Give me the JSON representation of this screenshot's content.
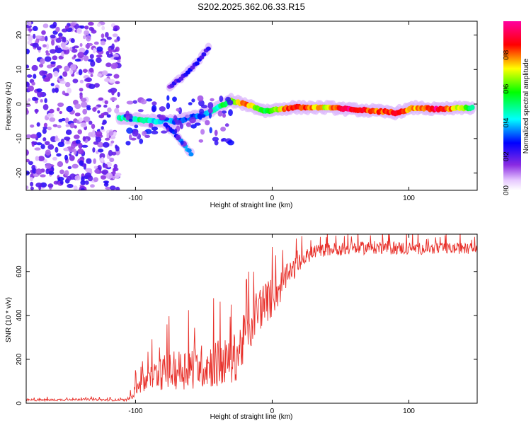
{
  "title": "S202.2025.362.06.33.R15",
  "chart_data": [
    {
      "type": "heatmap",
      "title": "S202.2025.362.06.33.R15",
      "xlabel": "Height of straight line (km)",
      "ylabel": "Frequency (Hz)",
      "xlim": [
        -180,
        150
      ],
      "ylim": [
        -25,
        24
      ],
      "xticks": [
        -100,
        0,
        100
      ],
      "yticks": [
        -20,
        -10,
        0,
        10,
        20
      ],
      "colorbar": {
        "label": "Normalized spectral amplitude",
        "range": [
          0.0,
          1.0
        ],
        "ticks": [
          0.0,
          0.2,
          0.4,
          0.6,
          0.8
        ],
        "tick_labels": [
          "0.0",
          "0.2",
          "0.4",
          "0.6",
          "0.8"
        ]
      },
      "features": [
        {
          "description": "scattered noise",
          "x_range": [
            -180,
            -112
          ],
          "y_range": [
            -25,
            24
          ],
          "amplitude": 0.2
        },
        {
          "description": "main spectral line",
          "points": [
            {
              "x": -112,
              "y": -4,
              "a": 0.45
            },
            {
              "x": -100,
              "y": -4.5,
              "a": 0.5
            },
            {
              "x": -85,
              "y": -5,
              "a": 0.4
            },
            {
              "x": -70,
              "y": -5,
              "a": 0.35
            },
            {
              "x": -50,
              "y": -3,
              "a": 0.35
            },
            {
              "x": -30,
              "y": 1,
              "a": 0.6
            },
            {
              "x": -20,
              "y": 0,
              "a": 0.8
            },
            {
              "x": -5,
              "y": -2,
              "a": 0.5
            },
            {
              "x": 15,
              "y": -1,
              "a": 0.9
            },
            {
              "x": 40,
              "y": -1,
              "a": 0.7
            },
            {
              "x": 55,
              "y": -1.5,
              "a": 0.95
            },
            {
              "x": 75,
              "y": -2,
              "a": 0.8
            },
            {
              "x": 90,
              "y": -2.5,
              "a": 0.85
            },
            {
              "x": 105,
              "y": -1,
              "a": 0.75
            },
            {
              "x": 120,
              "y": -1.5,
              "a": 0.95
            },
            {
              "x": 148,
              "y": -1,
              "a": 0.5
            }
          ]
        },
        {
          "description": "rising branch",
          "points": [
            {
              "x": -75,
              "y": 5,
              "a": 0.2
            },
            {
              "x": -65,
              "y": 8,
              "a": 0.2
            },
            {
              "x": -55,
              "y": 12,
              "a": 0.25
            },
            {
              "x": -45,
              "y": 17,
              "a": 0.2
            }
          ]
        },
        {
          "description": "descending branch",
          "points": [
            {
              "x": -78,
              "y": -6,
              "a": 0.3
            },
            {
              "x": -70,
              "y": -9,
              "a": 0.3
            },
            {
              "x": -62,
              "y": -13,
              "a": 0.4
            },
            {
              "x": -58,
              "y": -15,
              "a": 0.3
            }
          ]
        }
      ]
    },
    {
      "type": "line",
      "xlabel": "Height of straight line (km)",
      "ylabel": "SNR (10 * v/v)",
      "xlim": [
        -180,
        150
      ],
      "ylim": [
        0,
        770
      ],
      "xticks": [
        -100,
        0,
        100
      ],
      "yticks": [
        0,
        200,
        400,
        600
      ],
      "series": [
        {
          "name": "SNR",
          "color": "#e8302a",
          "x": [
            -180,
            -160,
            -140,
            -120,
            -105,
            -100,
            -95,
            -90,
            -85,
            -80,
            -70,
            -60,
            -50,
            -40,
            -30,
            -25,
            -20,
            -15,
            -10,
            -5,
            0,
            5,
            10,
            20,
            30,
            40,
            60,
            80,
            100,
            120,
            150
          ],
          "y": [
            15,
            15,
            18,
            15,
            15,
            70,
            90,
            110,
            130,
            140,
            150,
            165,
            170,
            180,
            190,
            230,
            300,
            370,
            430,
            460,
            480,
            520,
            570,
            640,
            690,
            700,
            705,
            710,
            705,
            705,
            705
          ],
          "noise": [
            5,
            5,
            5,
            5,
            5,
            40,
            50,
            60,
            70,
            80,
            90,
            100,
            100,
            110,
            110,
            120,
            120,
            120,
            110,
            100,
            90,
            80,
            60,
            40,
            30,
            30,
            30,
            30,
            30,
            25,
            25
          ]
        }
      ]
    }
  ]
}
